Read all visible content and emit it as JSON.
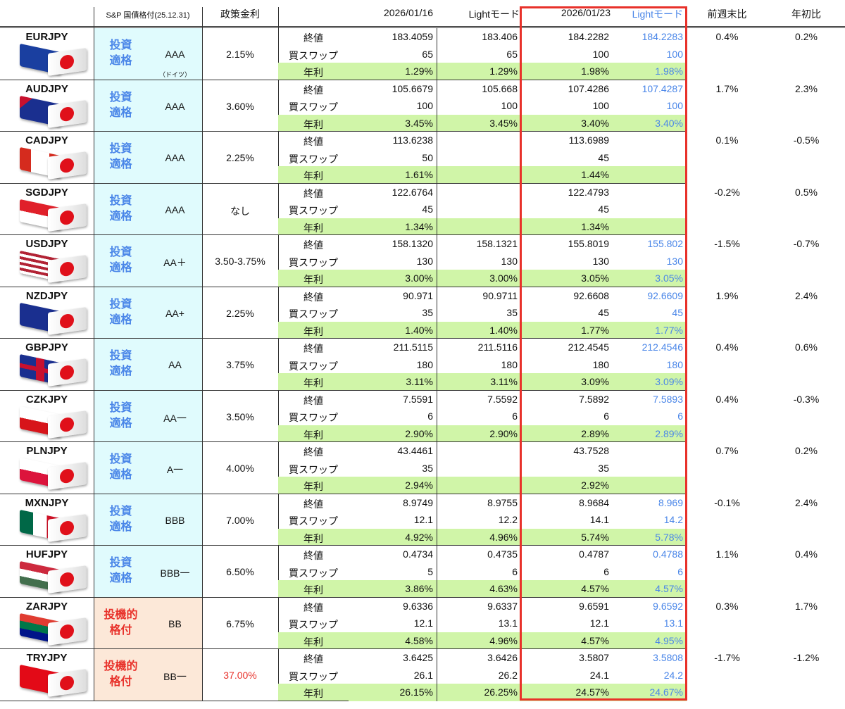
{
  "header": {
    "rating": "S&P 国債格付(25.12.31)",
    "policy": "政策金利",
    "date1": "2026/01/16",
    "light1": "Lightモード",
    "date2": "2026/01/23",
    "light2": "Lightモード",
    "week": "前週末比",
    "year": "年初比"
  },
  "labels": {
    "close": "終値",
    "swap": "買スワップ",
    "annual": "年利"
  },
  "colors": {
    "invest_bg": "#e0fbfd",
    "invest_text": "#4a86e8",
    "spec_bg": "#fce8d8",
    "spec_text": "#e8312a",
    "annual_bg": "#d0f5a8",
    "highlight_border": "#e8312a",
    "light_text": "#4a86e8"
  },
  "rows": [
    {
      "pair": "EURJPY",
      "flag": "eu",
      "rating_type": "投資\n適格",
      "spec": false,
      "rating": "AAA",
      "rating_note": "（ドイツ）",
      "policy": "2.15%",
      "close": [
        "183.4059",
        "183.406",
        "184.2282",
        "184.2283"
      ],
      "swap": [
        "65",
        "65",
        "100",
        "100"
      ],
      "annual": [
        "1.29%",
        "1.29%",
        "1.98%",
        "1.98%"
      ],
      "week": "0.4%",
      "year": "0.2%"
    },
    {
      "pair": "AUDJPY",
      "flag": "au",
      "rating_type": "投資\n適格",
      "spec": false,
      "rating": "AAA",
      "policy": "3.60%",
      "close": [
        "105.6679",
        "105.668",
        "107.4286",
        "107.4287"
      ],
      "swap": [
        "100",
        "100",
        "100",
        "100"
      ],
      "annual": [
        "3.45%",
        "3.45%",
        "3.40%",
        "3.40%"
      ],
      "week": "1.7%",
      "year": "2.3%"
    },
    {
      "pair": "CADJPY",
      "flag": "ca",
      "rating_type": "投資\n適格",
      "spec": false,
      "rating": "AAA",
      "policy": "2.25%",
      "close": [
        "113.6238",
        "",
        "113.6989",
        ""
      ],
      "swap": [
        "50",
        "",
        "45",
        ""
      ],
      "annual": [
        "1.61%",
        "",
        "1.44%",
        ""
      ],
      "week": "0.1%",
      "year": "-0.5%"
    },
    {
      "pair": "SGDJPY",
      "flag": "sg",
      "rating_type": "投資\n適格",
      "spec": false,
      "rating": "AAA",
      "policy": "なし",
      "close": [
        "122.6764",
        "",
        "122.4793",
        ""
      ],
      "swap": [
        "45",
        "",
        "45",
        ""
      ],
      "annual": [
        "1.34%",
        "",
        "1.34%",
        ""
      ],
      "week": "-0.2%",
      "year": "0.5%"
    },
    {
      "pair": "USDJPY",
      "flag": "us",
      "rating_type": "投資\n適格",
      "spec": false,
      "rating": "AA＋",
      "policy": "3.50-3.75%",
      "close": [
        "158.1320",
        "158.1321",
        "155.8019",
        "155.802"
      ],
      "swap": [
        "130",
        "130",
        "130",
        "130"
      ],
      "annual": [
        "3.00%",
        "3.00%",
        "3.05%",
        "3.05%"
      ],
      "week": "-1.5%",
      "year": "-0.7%"
    },
    {
      "pair": "NZDJPY",
      "flag": "nz",
      "rating_type": "投資\n適格",
      "spec": false,
      "rating": "AA+",
      "policy": "2.25%",
      "close": [
        "90.971",
        "90.9711",
        "92.6608",
        "92.6609"
      ],
      "swap": [
        "35",
        "35",
        "45",
        "45"
      ],
      "annual": [
        "1.40%",
        "1.40%",
        "1.77%",
        "1.77%"
      ],
      "week": "1.9%",
      "year": "2.4%"
    },
    {
      "pair": "GBPJPY",
      "flag": "gb",
      "rating_type": "投資\n適格",
      "spec": false,
      "rating": "AA",
      "policy": "3.75%",
      "close": [
        "211.5115",
        "211.5116",
        "212.4545",
        "212.4546"
      ],
      "swap": [
        "180",
        "180",
        "180",
        "180"
      ],
      "annual": [
        "3.11%",
        "3.11%",
        "3.09%",
        "3.09%"
      ],
      "week": "0.4%",
      "year": "0.6%"
    },
    {
      "pair": "CZKJPY",
      "flag": "cz",
      "rating_type": "投資\n適格",
      "spec": false,
      "rating": "AA一",
      "policy": "3.50%",
      "close": [
        "7.5591",
        "7.5592",
        "7.5892",
        "7.5893"
      ],
      "swap": [
        "6",
        "6",
        "6",
        "6"
      ],
      "annual": [
        "2.90%",
        "2.90%",
        "2.89%",
        "2.89%"
      ],
      "week": "0.4%",
      "year": "-0.3%"
    },
    {
      "pair": "PLNJPY",
      "flag": "pl",
      "rating_type": "投資\n適格",
      "spec": false,
      "rating": "A一",
      "policy": "4.00%",
      "close": [
        "43.4461",
        "",
        "43.7528",
        ""
      ],
      "swap": [
        "35",
        "",
        "35",
        ""
      ],
      "annual": [
        "2.94%",
        "",
        "2.92%",
        ""
      ],
      "week": "0.7%",
      "year": "0.2%"
    },
    {
      "pair": "MXNJPY",
      "flag": "mx",
      "rating_type": "投資\n適格",
      "spec": false,
      "rating": "BBB",
      "policy": "7.00%",
      "close": [
        "8.9749",
        "8.9755",
        "8.9684",
        "8.969"
      ],
      "swap": [
        "12.1",
        "12.2",
        "14.1",
        "14.2"
      ],
      "annual": [
        "4.92%",
        "4.96%",
        "5.74%",
        "5.78%"
      ],
      "week": "-0.1%",
      "year": "2.4%"
    },
    {
      "pair": "HUFJPY",
      "flag": "hu",
      "rating_type": "投資\n適格",
      "spec": false,
      "rating": "BBB一",
      "policy": "6.50%",
      "close": [
        "0.4734",
        "0.4735",
        "0.4787",
        "0.4788"
      ],
      "swap": [
        "5",
        "6",
        "6",
        "6"
      ],
      "annual": [
        "3.86%",
        "4.63%",
        "4.57%",
        "4.57%"
      ],
      "week": "1.1%",
      "year": "0.4%"
    },
    {
      "pair": "ZARJPY",
      "flag": "za",
      "rating_type": "投機的\n格付",
      "spec": true,
      "rating": "BB",
      "policy": "6.75%",
      "close": [
        "9.6336",
        "9.6337",
        "9.6591",
        "9.6592"
      ],
      "swap": [
        "12.1",
        "13.1",
        "12.1",
        "13.1"
      ],
      "annual": [
        "4.58%",
        "4.96%",
        "4.57%",
        "4.95%"
      ],
      "week": "0.3%",
      "year": "1.7%"
    },
    {
      "pair": "TRYJPY",
      "flag": "tr",
      "rating_type": "投機的\n格付",
      "spec": true,
      "rating": "BB一",
      "policy": "37.00%",
      "policy_red": true,
      "close": [
        "3.6425",
        "3.6426",
        "3.5807",
        "3.5808"
      ],
      "swap": [
        "26.1",
        "26.2",
        "24.1",
        "24.2"
      ],
      "annual": [
        "26.15%",
        "26.25%",
        "24.57%",
        "24.67%"
      ],
      "week": "-1.7%",
      "year": "-1.2%"
    }
  ]
}
